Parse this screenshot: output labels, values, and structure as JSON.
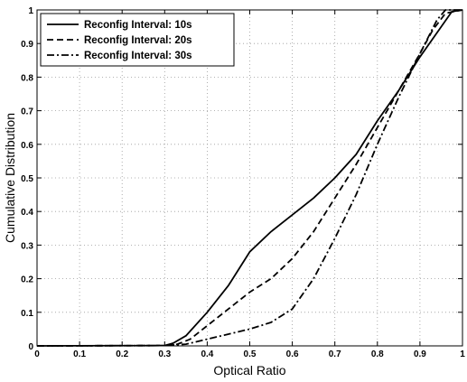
{
  "chart_data": {
    "type": "line",
    "title": "",
    "xlabel": "Optical Ratio",
    "ylabel": "Cumulative Distribution",
    "xlim": [
      0,
      1
    ],
    "ylim": [
      0,
      1
    ],
    "x_ticks": [
      "0",
      "0.1",
      "0.2",
      "0.3",
      "0.4",
      "0.5",
      "0.6",
      "0.7",
      "0.8",
      "0.9",
      "1"
    ],
    "y_ticks": [
      "0",
      "0.1",
      "0.2",
      "0.3",
      "0.4",
      "0.5",
      "0.6",
      "0.7",
      "0.8",
      "0.9",
      "1"
    ],
    "grid": true,
    "legend_position": "top-left",
    "series": [
      {
        "name": "Reconfig Interval: 10s",
        "line_style": "solid",
        "color": "#000000",
        "points": [
          [
            0,
            0
          ],
          [
            0.3,
            0.001
          ],
          [
            0.32,
            0.008
          ],
          [
            0.35,
            0.03
          ],
          [
            0.4,
            0.1
          ],
          [
            0.45,
            0.18
          ],
          [
            0.48,
            0.24
          ],
          [
            0.5,
            0.28
          ],
          [
            0.55,
            0.34
          ],
          [
            0.6,
            0.39
          ],
          [
            0.65,
            0.44
          ],
          [
            0.7,
            0.5
          ],
          [
            0.75,
            0.57
          ],
          [
            0.8,
            0.67
          ],
          [
            0.85,
            0.76
          ],
          [
            0.9,
            0.86
          ],
          [
            0.95,
            0.95
          ],
          [
            0.975,
            0.995
          ],
          [
            1.0,
            1.0
          ]
        ]
      },
      {
        "name": "Reconfig Interval: 20s",
        "line_style": "dashed",
        "color": "#000000",
        "points": [
          [
            0,
            0
          ],
          [
            0.3,
            0.001
          ],
          [
            0.33,
            0.005
          ],
          [
            0.36,
            0.02
          ],
          [
            0.4,
            0.06
          ],
          [
            0.45,
            0.11
          ],
          [
            0.5,
            0.16
          ],
          [
            0.55,
            0.2
          ],
          [
            0.6,
            0.26
          ],
          [
            0.65,
            0.34
          ],
          [
            0.7,
            0.44
          ],
          [
            0.75,
            0.54
          ],
          [
            0.8,
            0.65
          ],
          [
            0.85,
            0.76
          ],
          [
            0.9,
            0.87
          ],
          [
            0.93,
            0.94
          ],
          [
            0.96,
            0.99
          ],
          [
            1.0,
            1.0
          ]
        ]
      },
      {
        "name": "Reconfig Interval: 30s",
        "line_style": "dash-dot",
        "color": "#000000",
        "points": [
          [
            0,
            0
          ],
          [
            0.3,
            0.001
          ],
          [
            0.35,
            0.005
          ],
          [
            0.4,
            0.02
          ],
          [
            0.45,
            0.035
          ],
          [
            0.5,
            0.05
          ],
          [
            0.55,
            0.07
          ],
          [
            0.6,
            0.11
          ],
          [
            0.65,
            0.2
          ],
          [
            0.7,
            0.32
          ],
          [
            0.75,
            0.45
          ],
          [
            0.8,
            0.6
          ],
          [
            0.85,
            0.74
          ],
          [
            0.9,
            0.87
          ],
          [
            0.94,
            0.97
          ],
          [
            0.96,
            1.0
          ],
          [
            1.0,
            1.0
          ]
        ]
      }
    ]
  }
}
